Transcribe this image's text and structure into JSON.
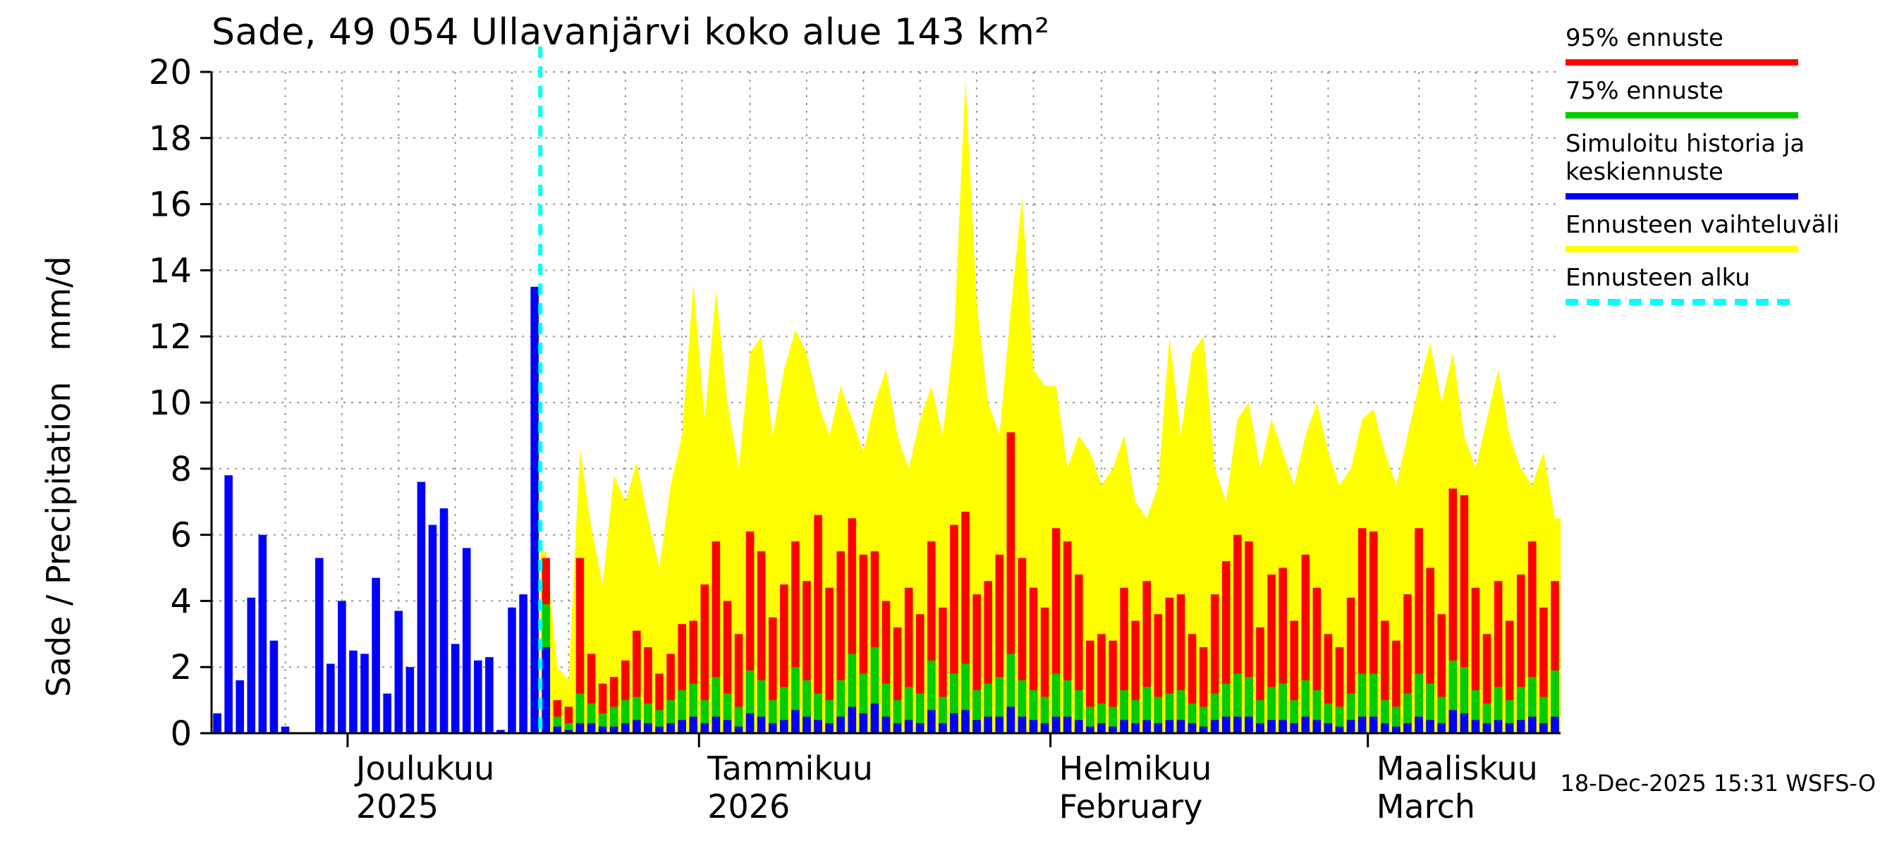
{
  "title": "Sade, 49 054 Ullavanjärvi koko alue 143 km²",
  "axes": {
    "y_label": "Sade / Precipitation   mm/d"
  },
  "legend": [
    {
      "label": "95% ennuste",
      "color": "#ff0000",
      "style": "solid"
    },
    {
      "label": "75% ennuste",
      "color": "#00cc00",
      "style": "solid"
    },
    {
      "label": "Simuloitu historia ja keskiennuste",
      "color": "#0000ff",
      "style": "solid"
    },
    {
      "label": "Ennusteen vaihteluväli",
      "color": "#ffff00",
      "style": "solid"
    },
    {
      "label": "Ennusteen alku",
      "color": "#00ffff",
      "style": "dashed"
    }
  ],
  "footer": {
    "timestamp": "18-Dec-2025 15:31 WSFS-O"
  },
  "chart_data": {
    "type": "bar",
    "title": "Sade, 49 054 Ullavanjärvi koko alue 143 km²",
    "xlabel": "",
    "ylabel": "Sade / Precipitation mm/d",
    "ylim": [
      0,
      20
    ],
    "y_tick_step": 2,
    "unit": "mm/d",
    "n_days": 119,
    "forecast_start_index": 29,
    "forecast_start_color": "#00ffff",
    "grid": "dotted",
    "legend_position": "top-right",
    "months": [
      {
        "label": "Joulukuu",
        "sublabel": "2025",
        "start_index": 12
      },
      {
        "label": "Tammikuu",
        "sublabel": "2026",
        "start_index": 43
      },
      {
        "label": "Helmikuu",
        "sublabel": "February",
        "start_index": 74
      },
      {
        "label": "Maaliskuu",
        "sublabel": "March",
        "start_index": 102
      }
    ],
    "v_gridline_indices": [
      6,
      11,
      16,
      21,
      26,
      31,
      36,
      41,
      47,
      52,
      57,
      62,
      67,
      72,
      78,
      83,
      88,
      93,
      98,
      106,
      111,
      116
    ],
    "series": [
      {
        "name": "Simuloitu historia ja keskiennuste",
        "color": "#0000ff",
        "render": "bar",
        "values": [
          0.6,
          7.8,
          1.6,
          4.1,
          6,
          2.8,
          0.2,
          0,
          0,
          5.3,
          2.1,
          4,
          2.5,
          2.4,
          4.7,
          1.2,
          3.7,
          2,
          7.6,
          6.3,
          6.8,
          2.7,
          5.6,
          2.2,
          2.3,
          0.1,
          3.8,
          4.2,
          13.5,
          2.6,
          0.2,
          0.1,
          0.3,
          0.3,
          0.2,
          0.2,
          0.3,
          0.4,
          0.3,
          0.2,
          0.3,
          0.4,
          0.5,
          0.3,
          0.5,
          0.4,
          0.2,
          0.6,
          0.5,
          0.3,
          0.4,
          0.7,
          0.5,
          0.4,
          0.3,
          0.5,
          0.8,
          0.6,
          0.9,
          0.5,
          0.3,
          0.4,
          0.3,
          0.7,
          0.3,
          0.6,
          0.7,
          0.4,
          0.5,
          0.5,
          0.8,
          0.5,
          0.4,
          0.3,
          0.5,
          0.5,
          0.4,
          0.2,
          0.3,
          0.2,
          0.4,
          0.3,
          0.4,
          0.3,
          0.4,
          0.4,
          0.3,
          0.2,
          0.4,
          0.5,
          0.5,
          0.5,
          0.3,
          0.4,
          0.4,
          0.3,
          0.5,
          0.4,
          0.3,
          0.2,
          0.4,
          0.5,
          0.5,
          0.3,
          0.2,
          0.3,
          0.5,
          0.4,
          0.3,
          0.7,
          0.6,
          0.4,
          0.3,
          0.4,
          0.3,
          0.4,
          0.5,
          0.3,
          0.5
        ]
      },
      {
        "name": "95% ennuste",
        "color": "#ff0000",
        "render": "bar",
        "values": [
          0,
          0,
          0,
          0,
          0,
          0,
          0,
          0,
          0,
          0,
          0,
          0,
          0,
          0,
          0,
          0,
          0,
          0,
          0,
          0,
          0,
          0,
          0,
          0,
          0,
          0,
          0,
          0,
          0,
          5.3,
          1,
          0.8,
          5.3,
          2.4,
          1.5,
          1.7,
          2.2,
          3.1,
          2.6,
          1.8,
          2.4,
          3.3,
          3.4,
          4.5,
          5.8,
          4,
          3,
          6.1,
          5.5,
          3.5,
          4.5,
          5.8,
          4.6,
          6.6,
          4.4,
          5.5,
          6.5,
          5.4,
          5.5,
          4,
          3.2,
          4.4,
          3.6,
          5.8,
          3.8,
          6.3,
          6.7,
          4.2,
          4.6,
          5.4,
          9.1,
          5.3,
          4.4,
          3.8,
          6.2,
          5.8,
          4.8,
          2.8,
          3,
          2.8,
          4.4,
          3.4,
          4.6,
          3.6,
          4.1,
          4.2,
          3,
          2.6,
          4.2,
          5.2,
          6,
          5.8,
          3.2,
          4.8,
          5,
          3.4,
          5.4,
          4.4,
          3,
          2.6,
          4.1,
          6.2,
          6.1,
          3.4,
          2.8,
          4.2,
          6.2,
          5,
          3.6,
          7.4,
          7.2,
          4.4,
          3,
          4.6,
          3.4,
          4.8,
          5.8,
          3.8,
          4.6
        ]
      },
      {
        "name": "75% ennuste",
        "color": "#00cc00",
        "render": "bar",
        "values": [
          0,
          0,
          0,
          0,
          0,
          0,
          0,
          0,
          0,
          0,
          0,
          0,
          0,
          0,
          0,
          0,
          0,
          0,
          0,
          0,
          0,
          0,
          0,
          0,
          0,
          0,
          0,
          0,
          0,
          3.9,
          0.5,
          0.3,
          1.2,
          0.9,
          0.6,
          0.8,
          1,
          1.1,
          0.9,
          0.7,
          1,
          1.3,
          1.5,
          1,
          1.7,
          1.2,
          0.8,
          1.9,
          1.6,
          1,
          1.4,
          2,
          1.6,
          1.2,
          1,
          1.6,
          2.4,
          1.8,
          2.6,
          1.5,
          1,
          1.4,
          1.2,
          2.2,
          1.1,
          1.8,
          2.1,
          1.3,
          1.5,
          1.7,
          2.4,
          1.6,
          1.3,
          1.1,
          1.8,
          1.6,
          1.3,
          0.8,
          0.9,
          0.8,
          1.3,
          1,
          1.4,
          1.1,
          1.2,
          1.3,
          0.9,
          0.8,
          1.2,
          1.5,
          1.8,
          1.7,
          1,
          1.4,
          1.5,
          1,
          1.6,
          1.3,
          0.9,
          0.8,
          1.2,
          1.8,
          1.8,
          1,
          0.8,
          1.2,
          1.8,
          1.5,
          1.1,
          2.2,
          2,
          1.3,
          0.9,
          1.4,
          1,
          1.4,
          1.7,
          1.1,
          1.9
        ]
      },
      {
        "name": "Ennusteen vaihteluväli",
        "color": "#ffff00",
        "render": "area",
        "values": [
          0,
          0,
          0,
          0,
          0,
          0,
          0,
          0,
          0,
          0,
          0,
          0,
          0,
          0,
          0,
          0,
          0,
          0,
          0,
          0,
          0,
          0,
          0,
          0,
          0,
          0,
          0,
          0,
          0,
          5.5,
          2,
          1.6,
          8.6,
          6.2,
          4.5,
          7.8,
          7,
          8.2,
          6.5,
          5,
          7.5,
          9,
          13.6,
          9.5,
          13.4,
          10,
          8,
          11.5,
          12,
          9,
          11,
          12.2,
          11.5,
          10,
          9,
          10.5,
          9.5,
          8.5,
          10,
          11,
          9,
          8,
          9.5,
          10.5,
          9,
          12,
          19.8,
          13,
          10,
          9,
          12.8,
          16.2,
          11,
          10.5,
          10.5,
          8,
          9,
          8.5,
          7.5,
          8,
          9,
          7,
          6.5,
          7.5,
          12,
          9,
          11.5,
          12,
          8,
          7,
          9.5,
          10,
          8,
          9.5,
          8.5,
          7.5,
          9,
          10,
          8.5,
          7.5,
          8,
          9.5,
          9.8,
          8.5,
          7.5,
          9,
          10.5,
          11.8,
          10,
          11.5,
          9,
          8,
          9.5,
          11,
          9,
          8,
          7.5,
          8.5,
          6.5
        ]
      }
    ]
  }
}
